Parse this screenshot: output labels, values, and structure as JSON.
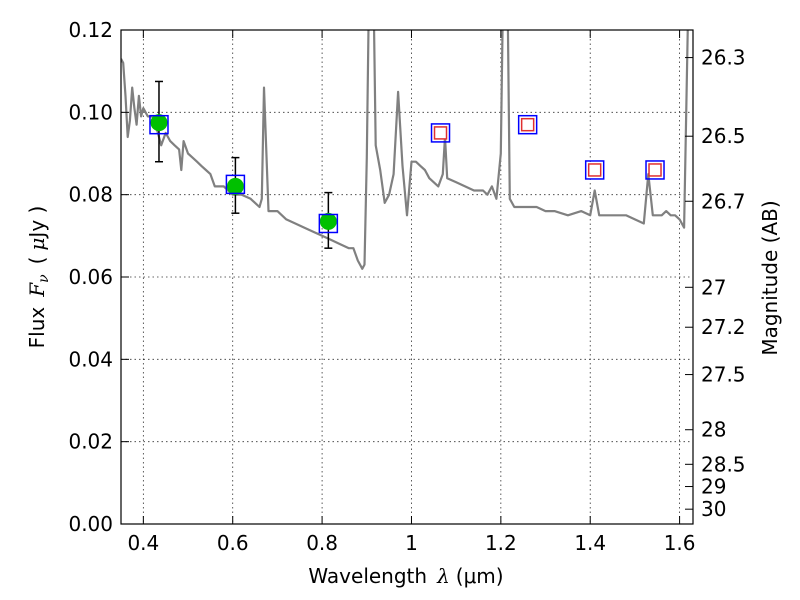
{
  "chart_data": {
    "type": "line",
    "xlabel": "Wavelength  λ (μm)",
    "xlabel_parts": {
      "prefix": "Wavelength",
      "symbol": "λ",
      "unit": "(μm)"
    },
    "ylabel": "Flux  Fν  ( μJy )",
    "ylabel_parts": {
      "prefix": "Flux",
      "symbol": "F",
      "subscript": "ν",
      "unit_open": "(",
      "unit_mu": "μ",
      "unit": "Jy )"
    },
    "y2label": "Magnitude (AB)",
    "xlim": [
      0.35,
      1.63
    ],
    "ylim": [
      0.0,
      0.12
    ],
    "grid": true,
    "x_ticks": [
      {
        "value": 0.4,
        "label": "0.4"
      },
      {
        "value": 0.6,
        "label": "0.6"
      },
      {
        "value": 0.8,
        "label": "0.8"
      },
      {
        "value": 1.0,
        "label": "1"
      },
      {
        "value": 1.2,
        "label": "1.2"
      },
      {
        "value": 1.4,
        "label": "1.4"
      },
      {
        "value": 1.6,
        "label": "1.6"
      }
    ],
    "y_ticks": [
      {
        "value": 0.0,
        "label": "0.00"
      },
      {
        "value": 0.02,
        "label": "0.02"
      },
      {
        "value": 0.04,
        "label": "0.04"
      },
      {
        "value": 0.06,
        "label": "0.06"
      },
      {
        "value": 0.08,
        "label": "0.08"
      },
      {
        "value": 0.1,
        "label": "0.10"
      },
      {
        "value": 0.12,
        "label": "0.12"
      }
    ],
    "y2_ticks": [
      {
        "flux": 0.1133,
        "label": "26.3"
      },
      {
        "flux": 0.0942,
        "label": "26.5"
      },
      {
        "flux": 0.0784,
        "label": "26.7"
      },
      {
        "flux": 0.0575,
        "label": "27"
      },
      {
        "flux": 0.0478,
        "label": "27.2"
      },
      {
        "flux": 0.0363,
        "label": "27.5"
      },
      {
        "flux": 0.0229,
        "label": "28"
      },
      {
        "flux": 0.0145,
        "label": "28.5"
      },
      {
        "flux": 0.0091,
        "label": "29"
      },
      {
        "flux": 0.0036,
        "label": "30"
      }
    ],
    "series": [
      {
        "kind": "model_spectrum",
        "color": "#808080",
        "x": [
          0.35,
          0.355,
          0.36,
          0.365,
          0.37,
          0.375,
          0.38,
          0.385,
          0.39,
          0.395,
          0.4,
          0.41,
          0.42,
          0.43,
          0.44,
          0.45,
          0.46,
          0.47,
          0.48,
          0.485,
          0.49,
          0.5,
          0.51,
          0.52,
          0.53,
          0.54,
          0.55,
          0.56,
          0.58,
          0.6,
          0.62,
          0.64,
          0.65,
          0.66,
          0.665,
          0.67,
          0.68,
          0.7,
          0.72,
          0.74,
          0.76,
          0.78,
          0.8,
          0.82,
          0.84,
          0.86,
          0.87,
          0.88,
          0.89,
          0.895,
          0.9,
          0.905,
          0.91,
          0.915,
          0.92,
          0.93,
          0.94,
          0.95,
          0.96,
          0.97,
          0.98,
          0.99,
          1.0,
          1.01,
          1.02,
          1.03,
          1.04,
          1.05,
          1.06,
          1.07,
          1.075,
          1.08,
          1.1,
          1.12,
          1.14,
          1.16,
          1.17,
          1.18,
          1.19,
          1.2,
          1.205,
          1.21,
          1.215,
          1.22,
          1.23,
          1.25,
          1.28,
          1.3,
          1.32,
          1.35,
          1.38,
          1.4,
          1.41,
          1.42,
          1.44,
          1.46,
          1.48,
          1.5,
          1.52,
          1.53,
          1.54,
          1.55,
          1.56,
          1.57,
          1.58,
          1.59,
          1.6,
          1.61,
          1.62,
          1.63
        ],
        "y": [
          0.113,
          0.112,
          0.104,
          0.094,
          0.098,
          0.106,
          0.101,
          0.097,
          0.104,
          0.099,
          0.101,
          0.099,
          0.099,
          0.096,
          0.092,
          0.095,
          0.093,
          0.092,
          0.091,
          0.086,
          0.093,
          0.09,
          0.089,
          0.088,
          0.087,
          0.086,
          0.085,
          0.082,
          0.082,
          0.08,
          0.08,
          0.079,
          0.078,
          0.077,
          0.079,
          0.106,
          0.076,
          0.076,
          0.074,
          0.073,
          0.072,
          0.071,
          0.07,
          0.069,
          0.068,
          0.067,
          0.067,
          0.064,
          0.062,
          0.063,
          0.089,
          0.13,
          0.13,
          0.13,
          0.092,
          0.086,
          0.078,
          0.08,
          0.085,
          0.105,
          0.087,
          0.075,
          0.088,
          0.088,
          0.087,
          0.086,
          0.084,
          0.083,
          0.082,
          0.085,
          0.094,
          0.084,
          0.083,
          0.082,
          0.081,
          0.081,
          0.08,
          0.082,
          0.079,
          0.09,
          0.13,
          0.13,
          0.13,
          0.079,
          0.077,
          0.077,
          0.077,
          0.076,
          0.076,
          0.075,
          0.076,
          0.075,
          0.081,
          0.075,
          0.075,
          0.075,
          0.075,
          0.074,
          0.073,
          0.085,
          0.075,
          0.075,
          0.075,
          0.076,
          0.075,
          0.075,
          0.074,
          0.072,
          0.13,
          0.13
        ]
      },
      {
        "kind": "observed",
        "marker": "circle",
        "color": "#00c000",
        "x": [
          0.435,
          0.606,
          0.814
        ],
        "y": [
          0.0975,
          0.082,
          0.0735
        ],
        "yerr_lower": [
          0.0095,
          0.0065,
          0.0065
        ],
        "yerr_upper": [
          0.01,
          0.007,
          0.007
        ]
      },
      {
        "kind": "model_bandflux",
        "marker": "square",
        "color": "#0000ff",
        "x": [
          0.435,
          0.606,
          0.814,
          1.065,
          1.26,
          1.41,
          1.545
        ],
        "y": [
          0.097,
          0.0825,
          0.073,
          0.095,
          0.097,
          0.086,
          0.086
        ]
      },
      {
        "kind": "upper_limit",
        "marker": "square",
        "color": "#e03030",
        "x": [
          1.065,
          1.26,
          1.41,
          1.545
        ],
        "y": [
          0.095,
          0.097,
          0.086,
          0.086
        ]
      }
    ]
  }
}
